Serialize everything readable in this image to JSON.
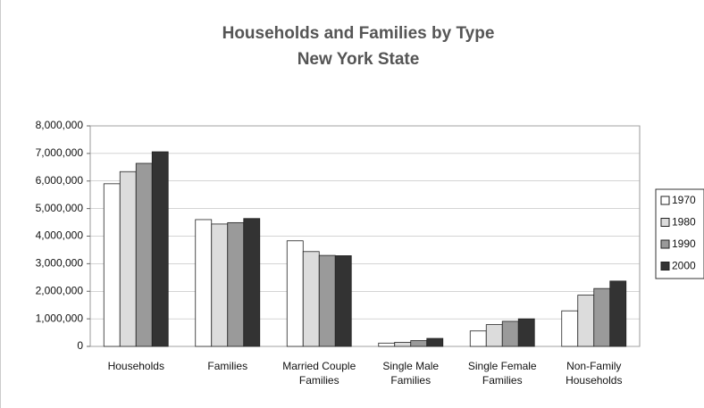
{
  "chart_data": {
    "type": "bar",
    "title": "Households and Families by Type",
    "subtitle": "New York State",
    "categories": [
      "Households",
      "Families",
      "Married Couple Families",
      "Single Male Families",
      "Single Female Families",
      "Non-Family Households"
    ],
    "series": [
      {
        "name": "1970",
        "color": "#ffffff",
        "values": [
          5900000,
          4600000,
          3830000,
          120000,
          560000,
          1290000
        ]
      },
      {
        "name": "1980",
        "color": "#dcdcdc",
        "values": [
          6340000,
          4440000,
          3440000,
          150000,
          790000,
          1860000
        ]
      },
      {
        "name": "1990",
        "color": "#9a9a9a",
        "values": [
          6640000,
          4490000,
          3300000,
          210000,
          910000,
          2100000
        ]
      },
      {
        "name": "2000",
        "color": "#333333",
        "values": [
          7060000,
          4640000,
          3290000,
          290000,
          1000000,
          2370000
        ]
      }
    ],
    "ylim": [
      0,
      8000000
    ],
    "yticks": [
      0,
      {
        "value": 1000000,
        "label": "1,000,000"
      },
      {
        "value": 2000000,
        "label": "2,000,000"
      },
      {
        "value": 3000000,
        "label": "3,000,000"
      },
      {
        "value": 4000000,
        "label": "4,000,000"
      },
      {
        "value": 5000000,
        "label": "5,000,000"
      },
      {
        "value": 6000000,
        "label": "6,000,000"
      },
      {
        "value": 7000000,
        "label": "7,000,000"
      },
      {
        "value": 8000000,
        "label": "8,000,000"
      }
    ],
    "grid": true,
    "legend": "right"
  }
}
